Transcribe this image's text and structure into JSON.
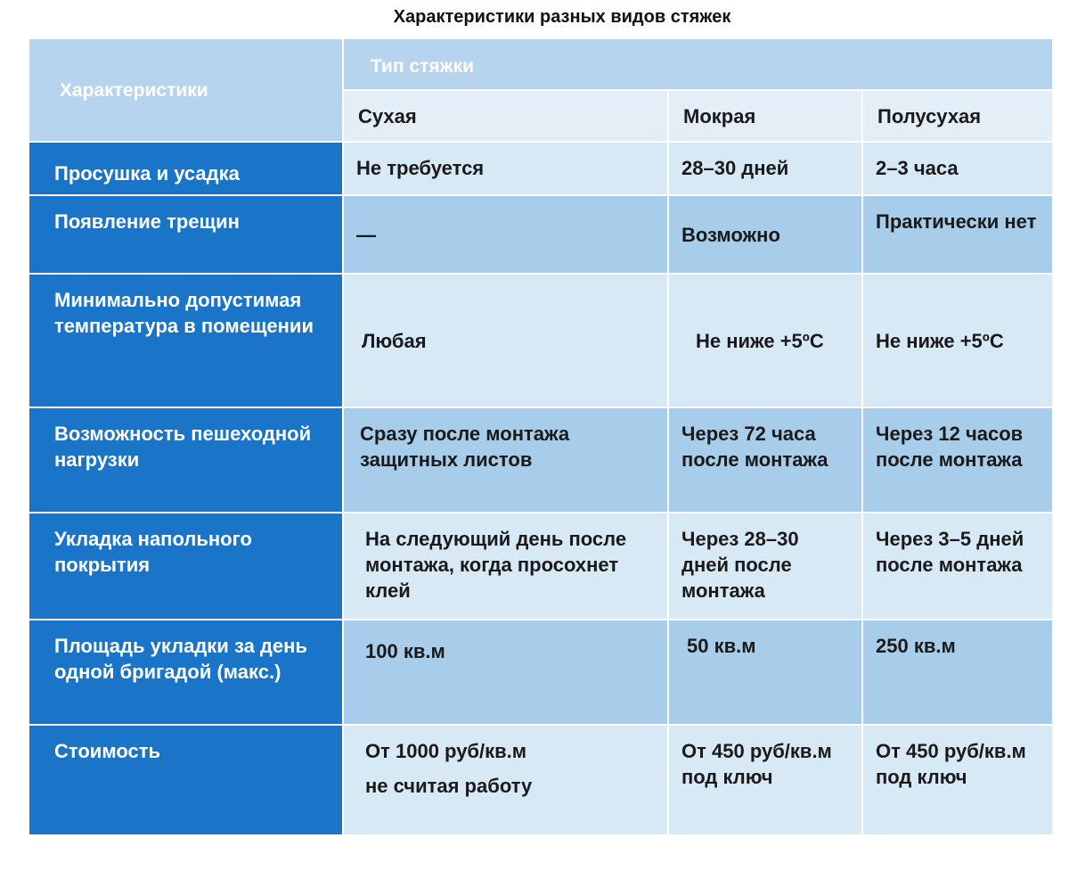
{
  "title": "Характеристики разных видов стяжек",
  "table": {
    "corner_label": "Характеристики",
    "type_header": "Тип стяжки",
    "columns": [
      "Сухая",
      "Мокрая",
      "Полусухая"
    ],
    "rows": [
      {
        "label": "Просушка и усадка",
        "values": [
          "Не требуется",
          "28–30 дней",
          "2–3 часа"
        ]
      },
      {
        "label": "Появление трещин",
        "values": [
          "—",
          "Возможно",
          "Практически нет"
        ]
      },
      {
        "label": "Минимально допустимая температура в помещении",
        "values": [
          "Любая",
          "Не ниже +5ºС",
          "Не ниже +5ºС"
        ]
      },
      {
        "label": "Возможность пешеходной нагрузки",
        "values": [
          "Сразу после монтажа защитных листов",
          "Через 72 часа после монтажа",
          "Через 12 часов после монтажа"
        ]
      },
      {
        "label": "Укладка напольного покрытия",
        "values": [
          "На следующий день после монтажа, когда просохнет клей",
          "Через 28–30 дней после монтажа",
          "Через 3–5 дней после монтажа"
        ]
      },
      {
        "label": "Площадь укладки за день одной бригадой (макс.)",
        "values": [
          "100 кв.м",
          "50 кв.м",
          "250 кв.м"
        ]
      },
      {
        "label": "Стоимость",
        "values": [
          "От 1000 руб/кв.м",
          "От 450 руб/кв.м под ключ",
          "От 450 руб/кв.м под ключ"
        ],
        "extra": "не считая работу"
      }
    ]
  }
}
